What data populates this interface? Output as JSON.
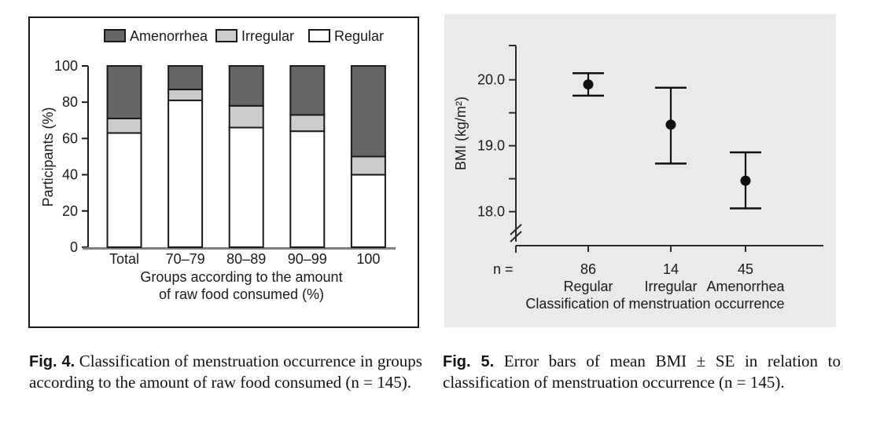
{
  "fig4": {
    "caption_label": "Fig. 4.",
    "caption_text": "Classification of menstruation occurrence in groups according to the amount of raw food consumed (n = 145)."
  },
  "fig5": {
    "caption_label": "Fig. 5.",
    "caption_text": "Error bars of mean BMI ± SE in relation to classification of menstruation occurrence (n = 145)."
  },
  "colors": {
    "amenorrhea_fill": "#666666",
    "irregular_fill": "#cccccc",
    "regular_fill": "#ffffff",
    "frame_stroke": "#1a1a1a",
    "baseline_gray": "#7f7f7f",
    "fig5_background": "#eaeaea",
    "fig5_axis": "#2b2b2b"
  },
  "chart_data": [
    {
      "type": "bar",
      "stacked": true,
      "categories": [
        "Total",
        "70–79",
        "80–89",
        "90–99",
        "100"
      ],
      "series": [
        {
          "name": "Regular",
          "color": "#ffffff",
          "values": [
            63,
            81,
            66,
            64,
            40
          ]
        },
        {
          "name": "Irregular",
          "color": "#cccccc",
          "values": [
            8,
            6,
            12,
            9,
            10
          ]
        },
        {
          "name": "Amenorrhea",
          "color": "#666666",
          "values": [
            29,
            13,
            22,
            27,
            50
          ]
        }
      ],
      "legend_order": [
        "Amenorrhea",
        "Irregular",
        "Regular"
      ],
      "legend_position": "top",
      "xlabel": "Groups according to the amount of raw food consumed (%)",
      "xlabel_lines": [
        "Groups according to the amount",
        "of raw food consumed (%)"
      ],
      "ylabel": "Participants (%)",
      "ylim": [
        0,
        100
      ],
      "yticks": [
        0,
        20,
        40,
        60,
        80,
        100
      ],
      "grid": false
    },
    {
      "type": "scatter",
      "subtype": "errorbar",
      "categories": [
        "Regular",
        "Irregular",
        "Amenorrhea"
      ],
      "n_label": "n =",
      "n_values": [
        "86",
        "14",
        "45"
      ],
      "points": [
        {
          "category": "Regular",
          "n": 86,
          "mean": 19.93,
          "upper": 20.1,
          "lower": 19.76
        },
        {
          "category": "Irregular",
          "n": 14,
          "mean": 19.32,
          "upper": 19.88,
          "lower": 18.73
        },
        {
          "category": "Amenorrhea",
          "n": 45,
          "mean": 18.47,
          "upper": 18.9,
          "lower": 18.05
        }
      ],
      "xlabel": "Classification of menstruation occurrence",
      "ylabel": "BMI (kg/m²)",
      "yticks": [
        20.0,
        19.0,
        18.0
      ],
      "ytick_labels": [
        "20.0",
        "19.0",
        "18.0"
      ],
      "minor_yticks": [
        19.5,
        18.5
      ],
      "axis_break": true,
      "ylim_display": [
        17.8,
        20.5
      ],
      "background": "#eaeaea",
      "grid": false
    }
  ]
}
